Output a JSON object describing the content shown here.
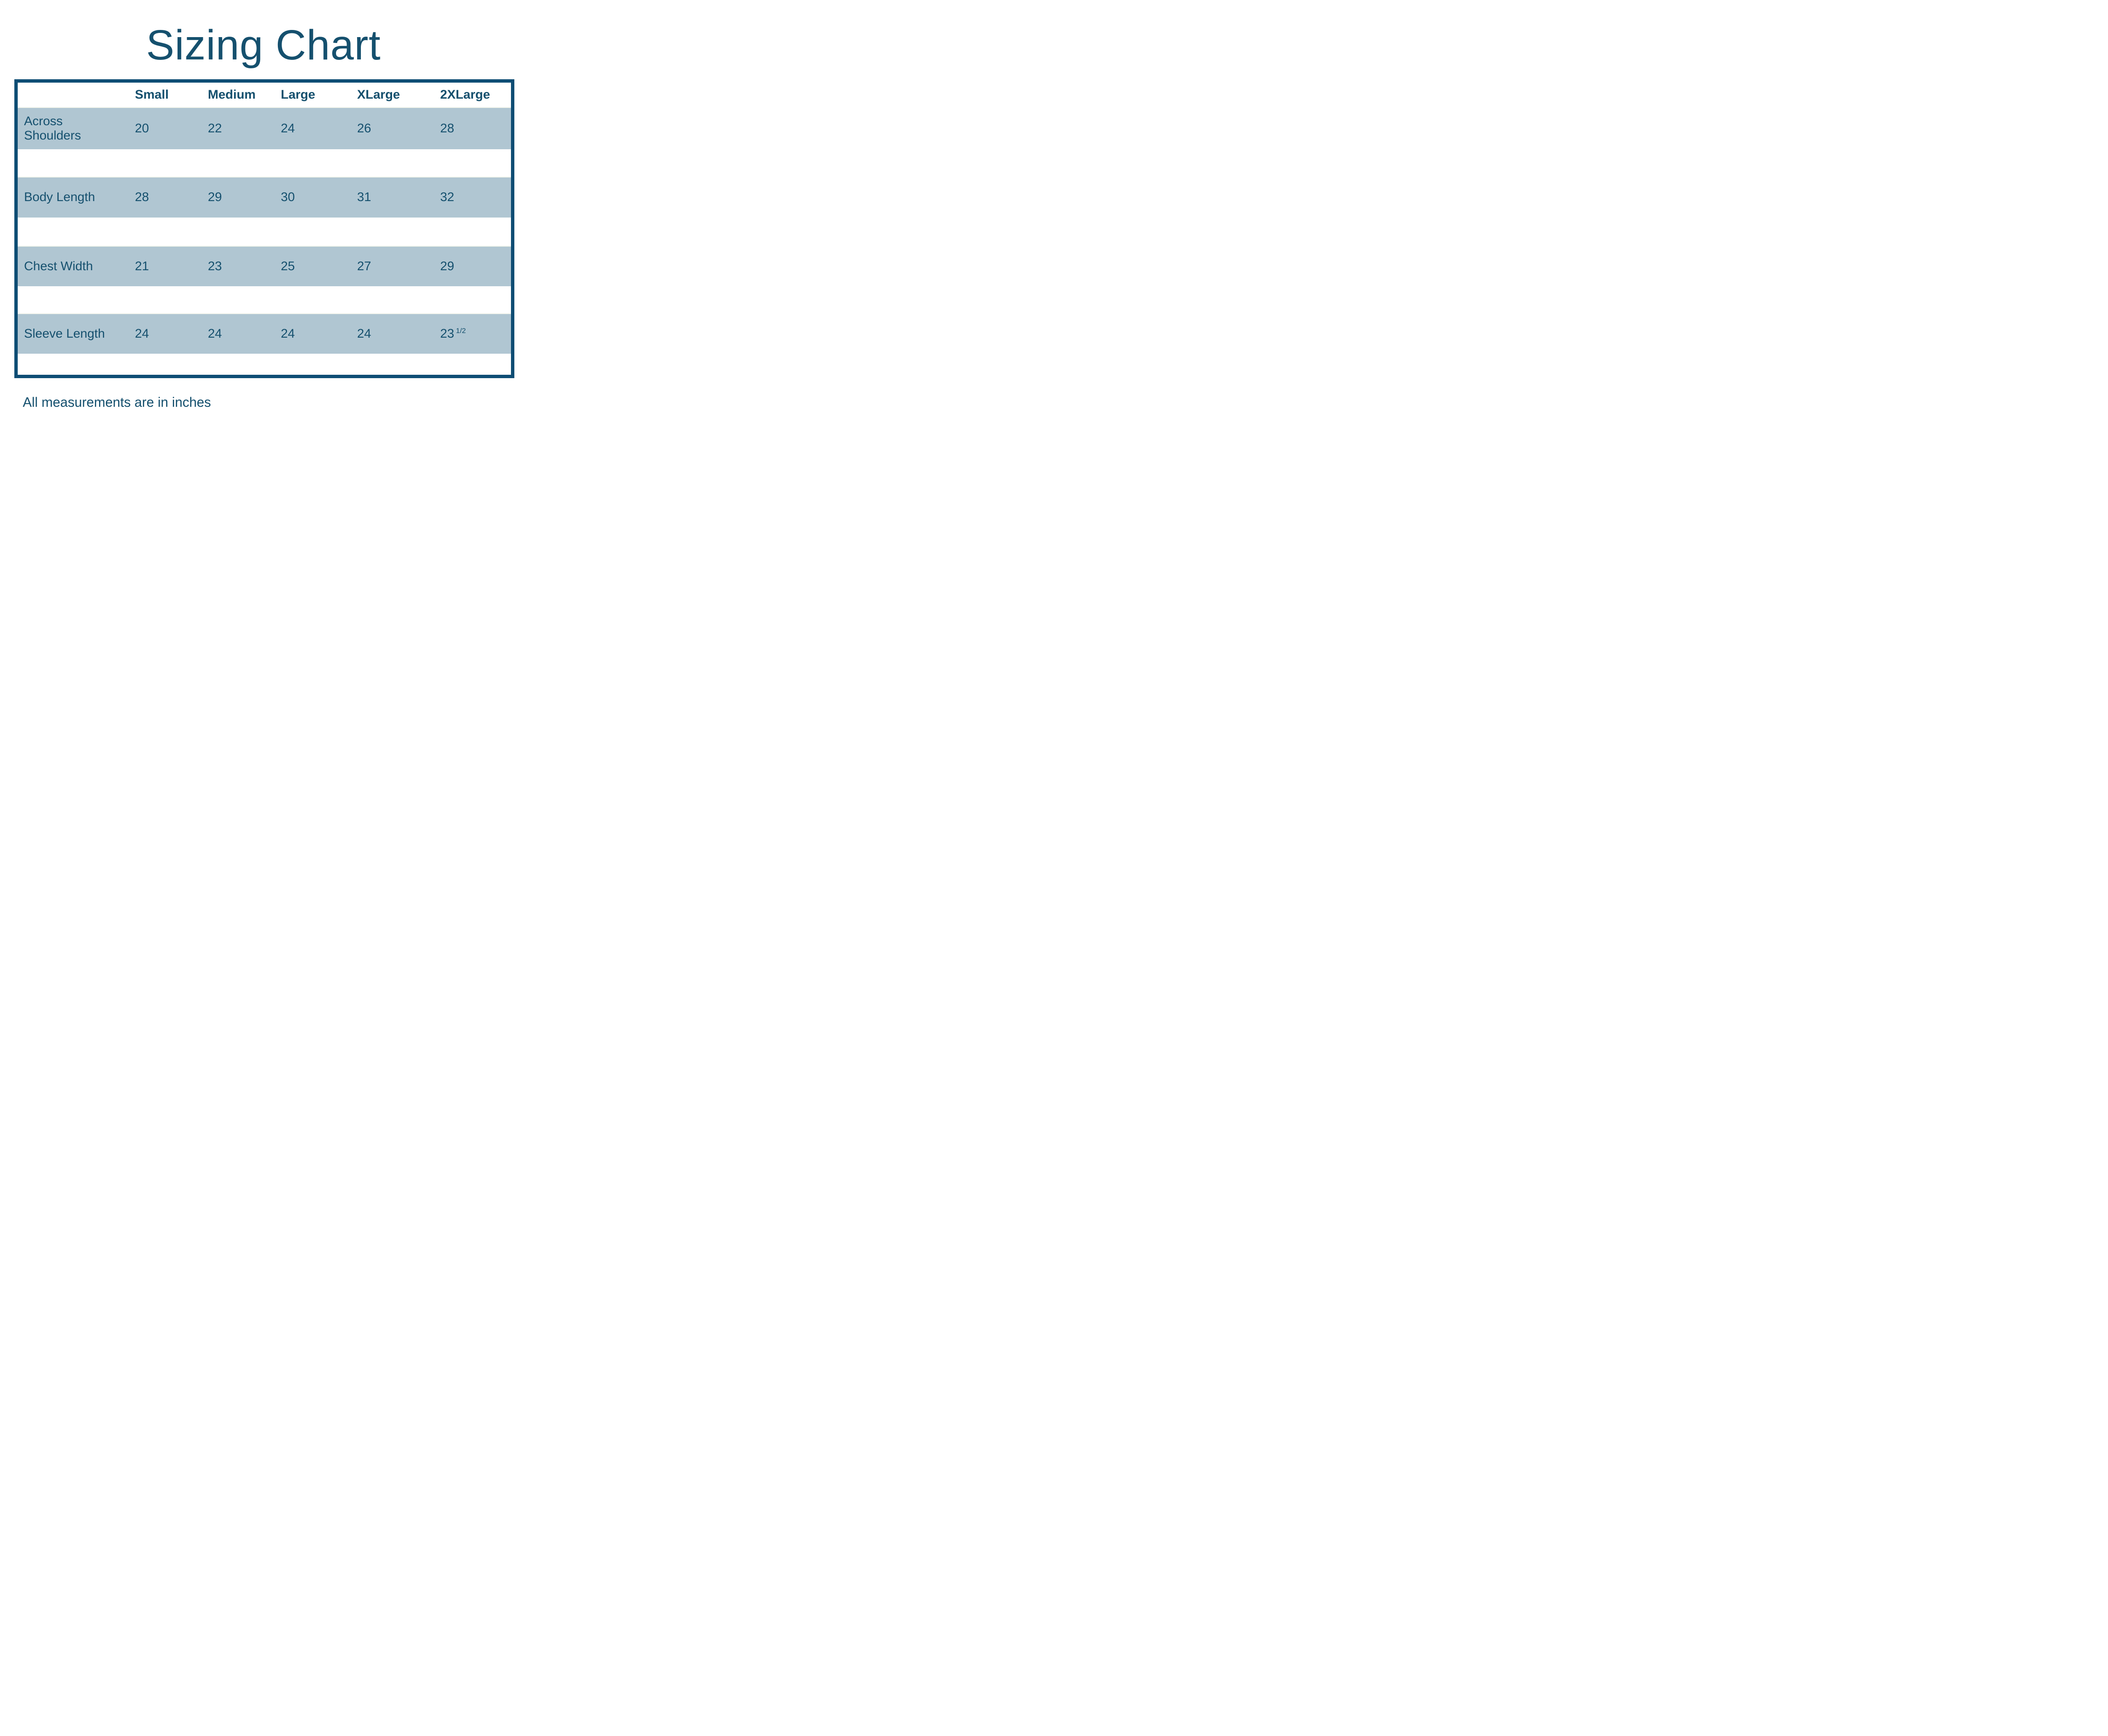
{
  "title": "Sizing Chart",
  "footer": "All measurements are in inches",
  "table": {
    "columns": [
      "Small",
      "Medium",
      "Large",
      "XLarge",
      "2XLarge"
    ],
    "rows": [
      {
        "label": "Across\nShoulders",
        "values": [
          "20",
          "22",
          "24",
          "26",
          "28"
        ]
      },
      {
        "label": "Body Length",
        "values": [
          "28",
          "29",
          "30",
          "31",
          "32"
        ]
      },
      {
        "label": "Chest Width",
        "values": [
          "21",
          "23",
          "25",
          "27",
          "29"
        ]
      },
      {
        "label": "Sleeve Length",
        "values": [
          "24",
          "24",
          "24",
          "24",
          {
            "base": "23",
            "sup": "1/2"
          }
        ]
      }
    ]
  },
  "chart_data": {
    "type": "table",
    "title": "Sizing Chart",
    "columns": [
      "Small",
      "Medium",
      "Large",
      "XLarge",
      "2XLarge"
    ],
    "rows": [
      {
        "label": "Across Shoulders",
        "values": [
          20,
          22,
          24,
          26,
          28
        ]
      },
      {
        "label": "Body Length",
        "values": [
          28,
          29,
          30,
          31,
          32
        ]
      },
      {
        "label": "Chest Width",
        "values": [
          21,
          23,
          25,
          27,
          29
        ]
      },
      {
        "label": "Sleeve Length",
        "values": [
          24,
          24,
          24,
          24,
          23.5
        ]
      }
    ],
    "note": "All measurements are in inches",
    "units": "inches"
  },
  "colors": {
    "border": "#0E4D74",
    "band": "#B0C6D2",
    "text": "#15506E",
    "background": "#FFFFFF"
  }
}
